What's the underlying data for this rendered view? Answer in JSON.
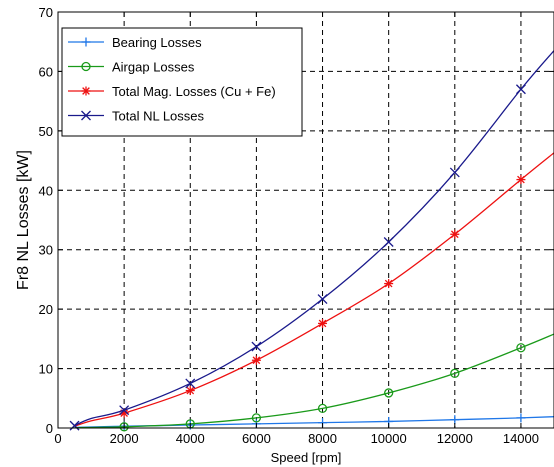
{
  "chart_data": {
    "type": "line",
    "xlabel": "Speed [rpm]",
    "ylabel": "Fr8 NL Losses [kW]",
    "xlim": [
      0,
      15000
    ],
    "ylim": [
      0,
      70
    ],
    "xticks": [
      0,
      2000,
      4000,
      6000,
      8000,
      10000,
      12000,
      14000
    ],
    "yticks": [
      0,
      10,
      20,
      30,
      40,
      50,
      60,
      70
    ],
    "grid": true,
    "grid_style": "dashed",
    "legend_position": "top-left",
    "series": [
      {
        "name": "Bearing Losses",
        "color": "#1f77e8",
        "marker": "plus",
        "x": [
          500,
          2000,
          4000,
          6000,
          8000,
          10000,
          12000,
          14000,
          15000
        ],
        "y": [
          0.1,
          0.3,
          0.5,
          0.7,
          0.9,
          1.1,
          1.4,
          1.7,
          1.9
        ],
        "marker_x": [
          2000,
          4000,
          6000,
          8000,
          10000,
          12000,
          14000
        ]
      },
      {
        "name": "Airgap Losses",
        "color": "#1a9a1a",
        "marker": "circle",
        "x": [
          500,
          2000,
          4000,
          6000,
          8000,
          10000,
          12000,
          14000,
          15000
        ],
        "y": [
          0.05,
          0.2,
          0.7,
          1.7,
          3.3,
          5.9,
          9.2,
          13.5,
          15.8
        ],
        "marker_x": [
          2000,
          4000,
          6000,
          8000,
          10000,
          12000,
          14000
        ]
      },
      {
        "name": "Total Mag. Losses (Cu + Fe)",
        "color": "#ee1111",
        "marker": "star",
        "x": [
          500,
          1000,
          2000,
          4000,
          6000,
          8000,
          10000,
          12000,
          14000,
          15000
        ],
        "y": [
          0.3,
          1.2,
          2.5,
          6.3,
          11.4,
          17.6,
          24.3,
          32.6,
          41.8,
          46.3
        ],
        "marker_x": [
          2000,
          4000,
          6000,
          8000,
          10000,
          12000,
          14000
        ]
      },
      {
        "name": "Total NL Losses",
        "color": "#1a1a8c",
        "marker": "x",
        "x": [
          500,
          1000,
          2000,
          4000,
          6000,
          8000,
          10000,
          12000,
          14000,
          15000
        ],
        "y": [
          0.4,
          1.6,
          3.0,
          7.5,
          13.7,
          21.7,
          31.3,
          43.0,
          57.0,
          63.5
        ],
        "marker_x": [
          500,
          2000,
          4000,
          6000,
          8000,
          10000,
          12000,
          14000
        ]
      }
    ]
  }
}
